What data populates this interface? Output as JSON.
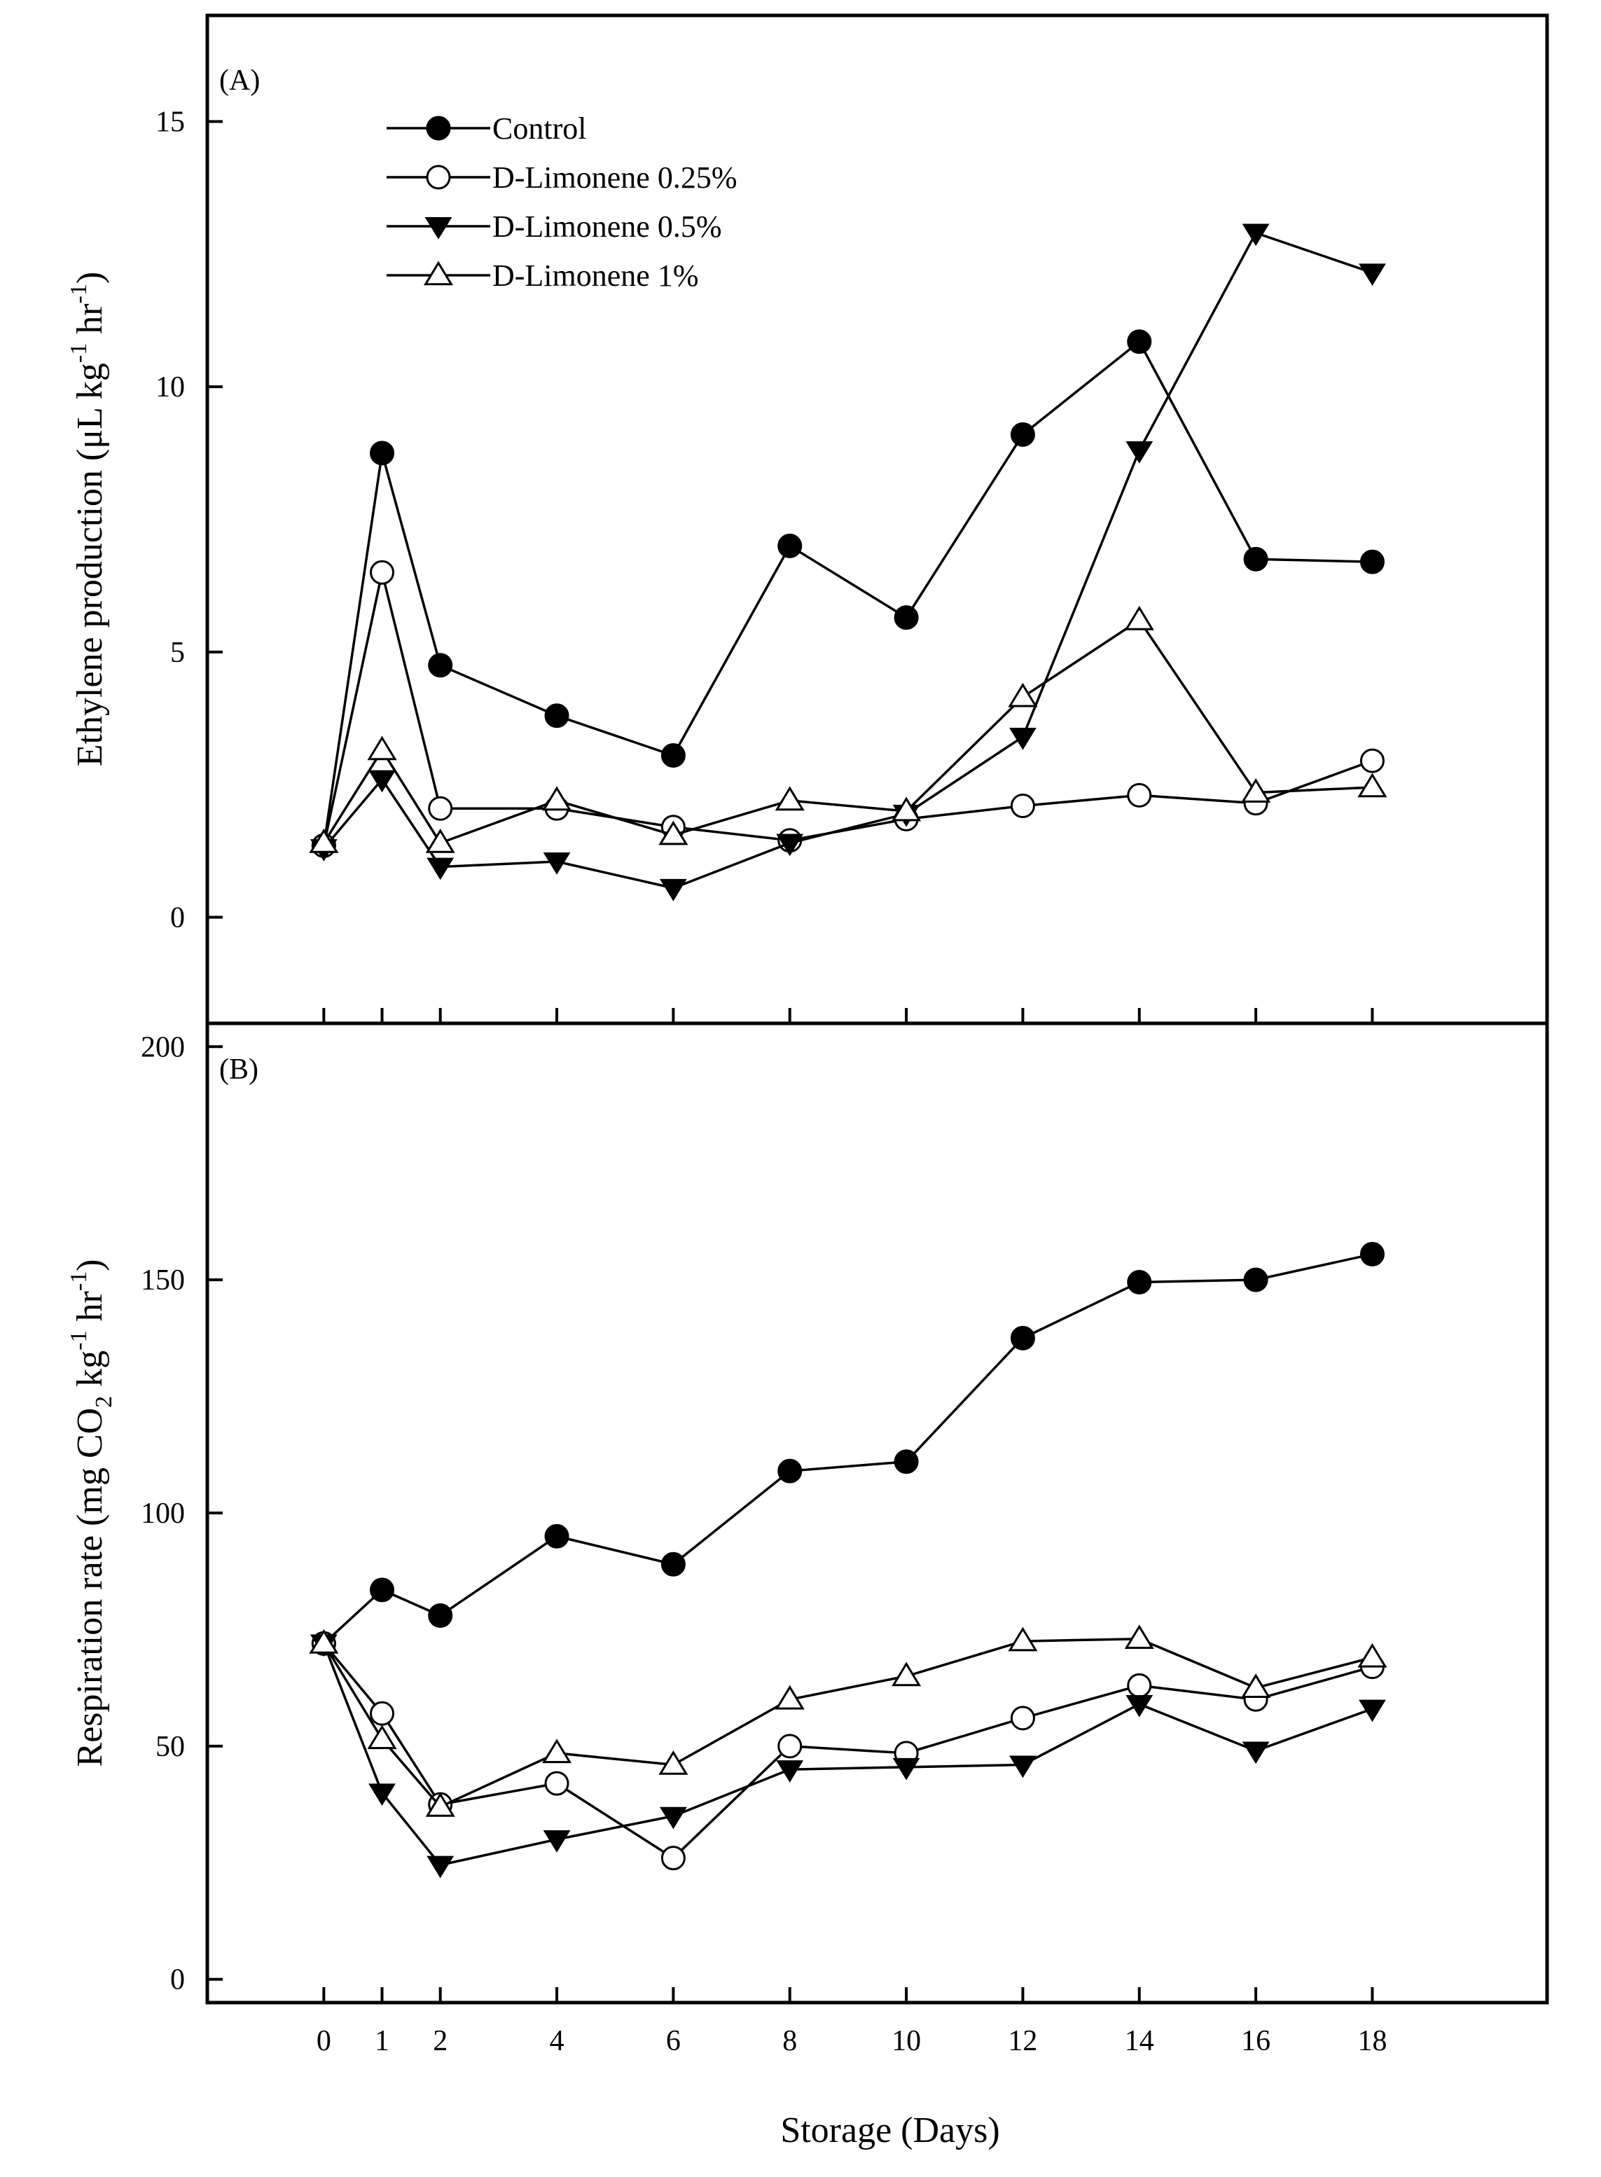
{
  "chart_data": [
    {
      "type": "line",
      "panel_label": "(A)",
      "ylabel": "Ethylene production (μL kg⁻¹ hr⁻¹)",
      "ylabel_parts": {
        "main": "Ethylene production (μL kg",
        "sup1": "-1",
        "mid": " hr",
        "sup2": "-1",
        "end": ")"
      },
      "ylim": [
        -2,
        17
      ],
      "yticks": [
        0,
        5,
        10,
        15
      ],
      "x": [
        0,
        1,
        2,
        4,
        6,
        8,
        10,
        12,
        14,
        16,
        18
      ],
      "xlim": [
        -2,
        21
      ],
      "legend": "top-left",
      "series": [
        {
          "name": "Control",
          "marker": "filled-circle",
          "values": [
            1.35,
            8.75,
            4.75,
            3.8,
            3.05,
            7.0,
            5.65,
            9.1,
            10.85,
            6.75,
            6.7
          ]
        },
        {
          "name": "D-Limonene 0.25%",
          "marker": "open-circle",
          "values": [
            1.35,
            6.5,
            2.05,
            2.05,
            1.7,
            1.45,
            1.85,
            2.1,
            2.3,
            2.15,
            2.95
          ]
        },
        {
          "name": "D-Limonene 0.5%",
          "marker": "filled-triangle-down",
          "values": [
            1.3,
            2.6,
            0.95,
            1.05,
            0.55,
            1.4,
            1.95,
            3.4,
            8.8,
            12.9,
            12.15
          ]
        },
        {
          "name": "D-Limonene 1%",
          "marker": "open-triangle-up",
          "values": [
            1.4,
            3.15,
            1.4,
            2.2,
            1.55,
            2.2,
            2.0,
            4.15,
            5.6,
            2.35,
            2.45
          ]
        }
      ]
    },
    {
      "type": "line",
      "panel_label": "(B)",
      "ylabel": "Respiration rate (mg CO₂ kg⁻¹ hr⁻¹)",
      "ylabel_parts": {
        "main": "Respiration rate (mg CO",
        "sub": "2",
        "mid1": " kg",
        "sup1": "-1",
        "mid2": " hr",
        "sup2": "-1",
        "end": ")"
      },
      "ylim": [
        -5,
        205
      ],
      "yticks": [
        0,
        50,
        100,
        150,
        200
      ],
      "x": [
        0,
        1,
        2,
        4,
        6,
        8,
        10,
        12,
        14,
        16,
        18
      ],
      "xlim": [
        -2,
        21
      ],
      "xlabel": "Storage (Days)",
      "xticks": [
        0,
        1,
        2,
        4,
        6,
        8,
        10,
        12,
        14,
        16,
        18
      ],
      "series": [
        {
          "name": "Control",
          "marker": "filled-circle",
          "values": [
            72,
            83.5,
            78,
            95,
            89,
            109,
            111,
            137.5,
            149.5,
            150,
            155.5
          ]
        },
        {
          "name": "D-Limonene 0.25%",
          "marker": "open-circle",
          "values": [
            72,
            57,
            37.5,
            42,
            26,
            50,
            48.5,
            56,
            63,
            60,
            67
          ]
        },
        {
          "name": "D-Limonene 0.5%",
          "marker": "filled-triangle-down",
          "values": [
            72,
            40,
            24.5,
            30,
            35,
            45,
            45.5,
            46,
            59,
            49,
            58
          ]
        },
        {
          "name": "D-Limonene 1%",
          "marker": "open-triangle-up",
          "values": [
            72,
            51.5,
            37,
            48.5,
            46,
            60,
            65,
            72.5,
            73,
            62.5,
            69
          ]
        }
      ]
    }
  ]
}
